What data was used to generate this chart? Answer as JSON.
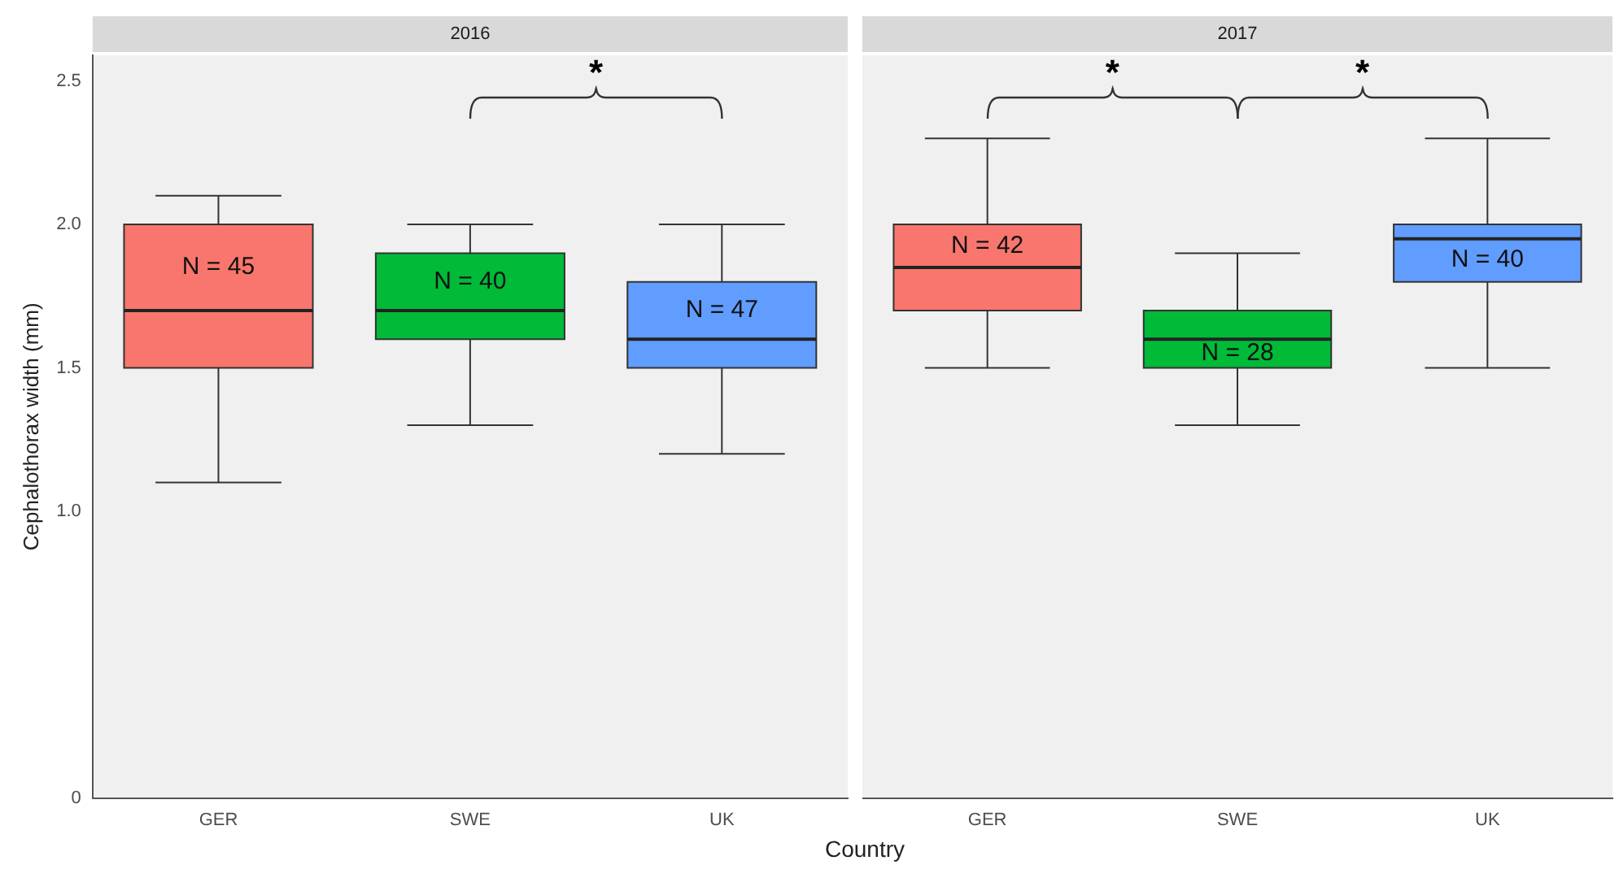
{
  "chart_data": [
    {
      "type": "box",
      "title": "2016",
      "xlabel": "Country",
      "ylabel": "Cephalothorax width (mm)",
      "categories": [
        "GER",
        "SWE",
        "UK"
      ],
      "colors": [
        "#f8766d",
        "#00ba38",
        "#619cff"
      ],
      "boxes": [
        {
          "low": 1.1,
          "q1": 1.5,
          "median": 1.7,
          "q3": 2.0,
          "high": 2.1
        },
        {
          "low": 1.3,
          "q1": 1.6,
          "median": 1.7,
          "q3": 1.9,
          "high": 2.0
        },
        {
          "low": 1.2,
          "q1": 1.5,
          "median": 1.6,
          "q3": 1.8,
          "high": 2.0
        }
      ],
      "ylim": [
        0,
        2.59
      ],
      "yticks": [
        0,
        {
          "value": 1,
          "label": "1.0"
        },
        1.5,
        {
          "value": 2,
          "label": "2.0"
        },
        2.5
      ],
      "annotations": [
        "N = 45",
        "N = 40",
        "N = 47",
        "*"
      ]
    },
    {
      "type": "box",
      "title": "2017",
      "categories": [
        "GER",
        "SWE",
        "UK"
      ],
      "colors": [
        "#f8766d",
        "#00ba38",
        "#619cff"
      ],
      "boxes": [
        {
          "low": 1.5,
          "q1": 1.7,
          "median": 1.85,
          "q3": 2.0,
          "high": 2.3
        },
        {
          "low": 1.3,
          "q1": 1.5,
          "median": 1.6,
          "q3": 1.7,
          "high": 1.9
        },
        {
          "low": 1.5,
          "q1": 1.8,
          "median": 1.95,
          "q3": 2.0,
          "high": 2.3
        }
      ],
      "ylim": [
        0,
        2.59
      ],
      "tick_labels": "x",
      "annotations": [
        "N = 42",
        "N = 28",
        "N = 40",
        "*",
        "*"
      ]
    }
  ]
}
